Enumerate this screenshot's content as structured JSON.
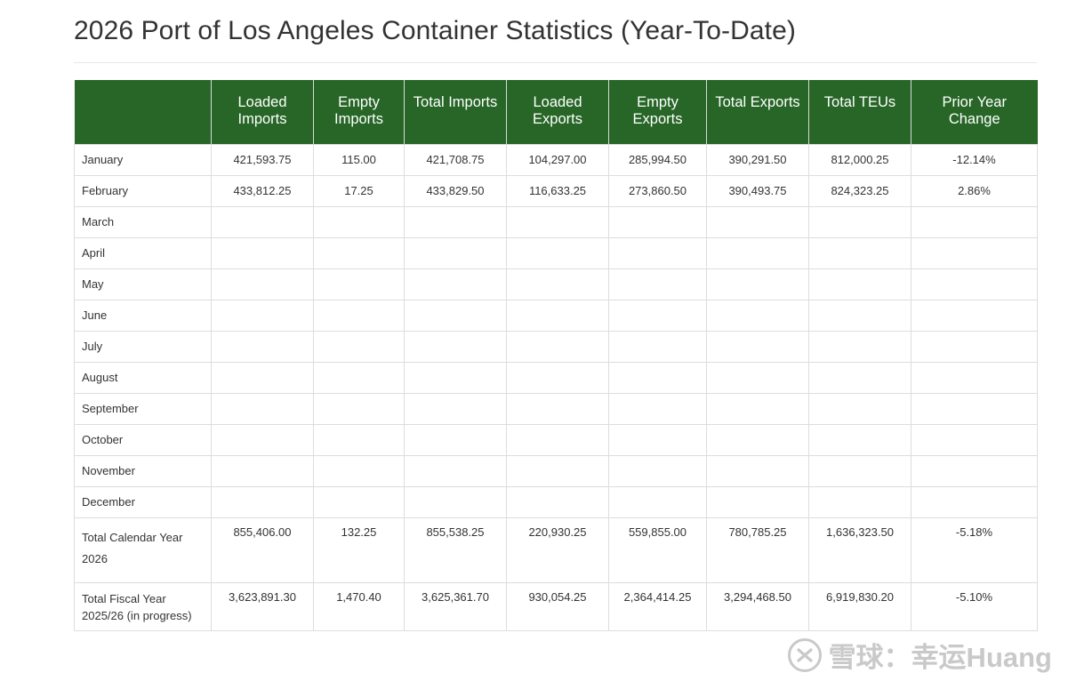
{
  "page": {
    "title": "2026 Port of Los Angeles Container Statistics (Year-To-Date)"
  },
  "table": {
    "header_color": "#276627",
    "headers": [
      "",
      "Loaded Imports",
      "Empty Imports",
      "Total Imports",
      "Loaded Exports",
      "Empty Exports",
      "Total Exports",
      "Total TEUs",
      "Prior Year Change"
    ],
    "rows": [
      {
        "month": "January",
        "loaded_imports": "421,593.75",
        "empty_imports": "115.00",
        "total_imports": "421,708.75",
        "loaded_exports": "104,297.00",
        "empty_exports": "285,994.50",
        "total_exports": "390,291.50",
        "total_teus": "812,000.25",
        "change": "-12.14%"
      },
      {
        "month": "February",
        "loaded_imports": "433,812.25",
        "empty_imports": "17.25",
        "total_imports": "433,829.50",
        "loaded_exports": "116,633.25",
        "empty_exports": "273,860.50",
        "total_exports": "390,493.75",
        "total_teus": "824,323.25",
        "change": "2.86%"
      },
      {
        "month": "March",
        "loaded_imports": "",
        "empty_imports": "",
        "total_imports": "",
        "loaded_exports": "",
        "empty_exports": "",
        "total_exports": "",
        "total_teus": "",
        "change": ""
      },
      {
        "month": "April",
        "loaded_imports": "",
        "empty_imports": "",
        "total_imports": "",
        "loaded_exports": "",
        "empty_exports": "",
        "total_exports": "",
        "total_teus": "",
        "change": ""
      },
      {
        "month": "May",
        "loaded_imports": "",
        "empty_imports": "",
        "total_imports": "",
        "loaded_exports": "",
        "empty_exports": "",
        "total_exports": "",
        "total_teus": "",
        "change": ""
      },
      {
        "month": "June",
        "loaded_imports": "",
        "empty_imports": "",
        "total_imports": "",
        "loaded_exports": "",
        "empty_exports": "",
        "total_exports": "",
        "total_teus": "",
        "change": ""
      },
      {
        "month": "July",
        "loaded_imports": "",
        "empty_imports": "",
        "total_imports": "",
        "loaded_exports": "",
        "empty_exports": "",
        "total_exports": "",
        "total_teus": "",
        "change": ""
      },
      {
        "month": "August",
        "loaded_imports": "",
        "empty_imports": "",
        "total_imports": "",
        "loaded_exports": "",
        "empty_exports": "",
        "total_exports": "",
        "total_teus": "",
        "change": ""
      },
      {
        "month": "September",
        "loaded_imports": "",
        "empty_imports": "",
        "total_imports": "",
        "loaded_exports": "",
        "empty_exports": "",
        "total_exports": "",
        "total_teus": "",
        "change": ""
      },
      {
        "month": "October",
        "loaded_imports": "",
        "empty_imports": "",
        "total_imports": "",
        "loaded_exports": "",
        "empty_exports": "",
        "total_exports": "",
        "total_teus": "",
        "change": ""
      },
      {
        "month": "November",
        "loaded_imports": "",
        "empty_imports": "",
        "total_imports": "",
        "loaded_exports": "",
        "empty_exports": "",
        "total_exports": "",
        "total_teus": "",
        "change": ""
      },
      {
        "month": "December",
        "loaded_imports": "",
        "empty_imports": "",
        "total_imports": "",
        "loaded_exports": "",
        "empty_exports": "",
        "total_exports": "",
        "total_teus": "",
        "change": ""
      }
    ],
    "totals": [
      {
        "month": "Total Calendar Year 2026",
        "loaded_imports": "855,406.00",
        "empty_imports": "132.25",
        "total_imports": "855,538.25",
        "loaded_exports": "220,930.25",
        "empty_exports": "559,855.00",
        "total_exports": "780,785.25",
        "total_teus": "1,636,323.50",
        "change": "-5.18%"
      },
      {
        "month": "Total Fiscal Year 2025/26 (in progress)",
        "loaded_imports": "3,623,891.30",
        "empty_imports": "1,470.40",
        "total_imports": "3,625,361.70",
        "loaded_exports": "930,054.25",
        "empty_exports": "2,364,414.25",
        "total_exports": "3,294,468.50",
        "total_teus": "6,919,830.20",
        "change": "-5.10%"
      }
    ]
  },
  "watermark": {
    "text": "雪球：幸运Huang",
    "icon": "xueqiu-logo-icon"
  }
}
